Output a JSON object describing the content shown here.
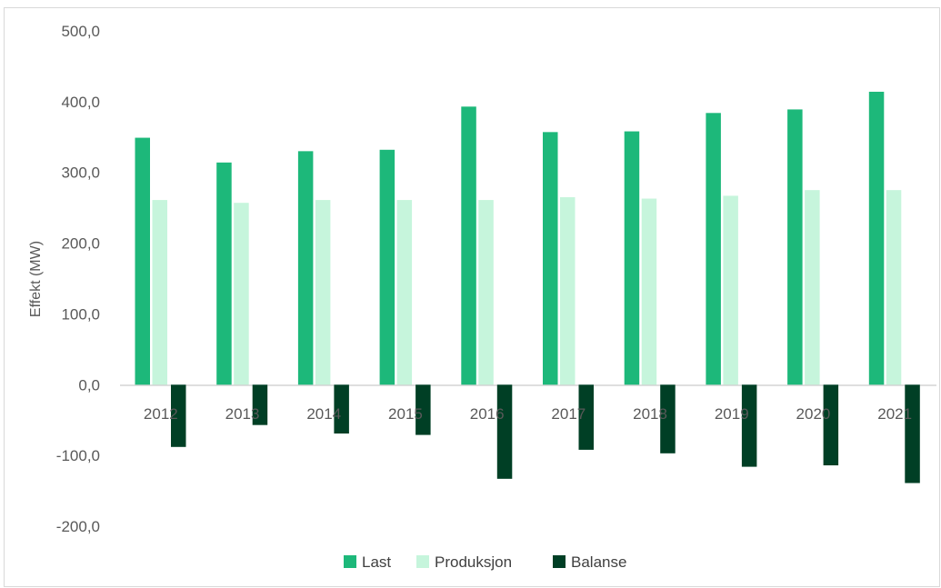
{
  "chart_data": {
    "type": "bar",
    "categories": [
      "2012",
      "2013",
      "2014",
      "2015",
      "2016",
      "2017",
      "2018",
      "2019",
      "2020",
      "2021"
    ],
    "series": [
      {
        "name": "Last",
        "color": "#1db87a",
        "values": [
          349,
          314,
          330,
          332,
          393,
          357,
          358,
          384,
          389,
          414
        ]
      },
      {
        "name": "Produksjon",
        "color": "#c6f5dc",
        "values": [
          261,
          257,
          261,
          261,
          261,
          265,
          263,
          267,
          275,
          275
        ]
      },
      {
        "name": "Balanse",
        "color": "#003f25",
        "values": [
          -88,
          -57,
          -69,
          -71,
          -133,
          -92,
          -97,
          -116,
          -114,
          -139
        ]
      }
    ],
    "ylabel": "Effekt (MW)",
    "ylim": [
      -200,
      500
    ],
    "yticks": [
      "500,0",
      "400,0",
      "300,0",
      "200,0",
      "100,0",
      "0,0",
      "-100,0",
      "-200,0"
    ],
    "ytick_values": [
      500,
      400,
      300,
      200,
      100,
      0,
      -100,
      -200
    ],
    "gridlines": false,
    "legend_position": "bottom"
  }
}
